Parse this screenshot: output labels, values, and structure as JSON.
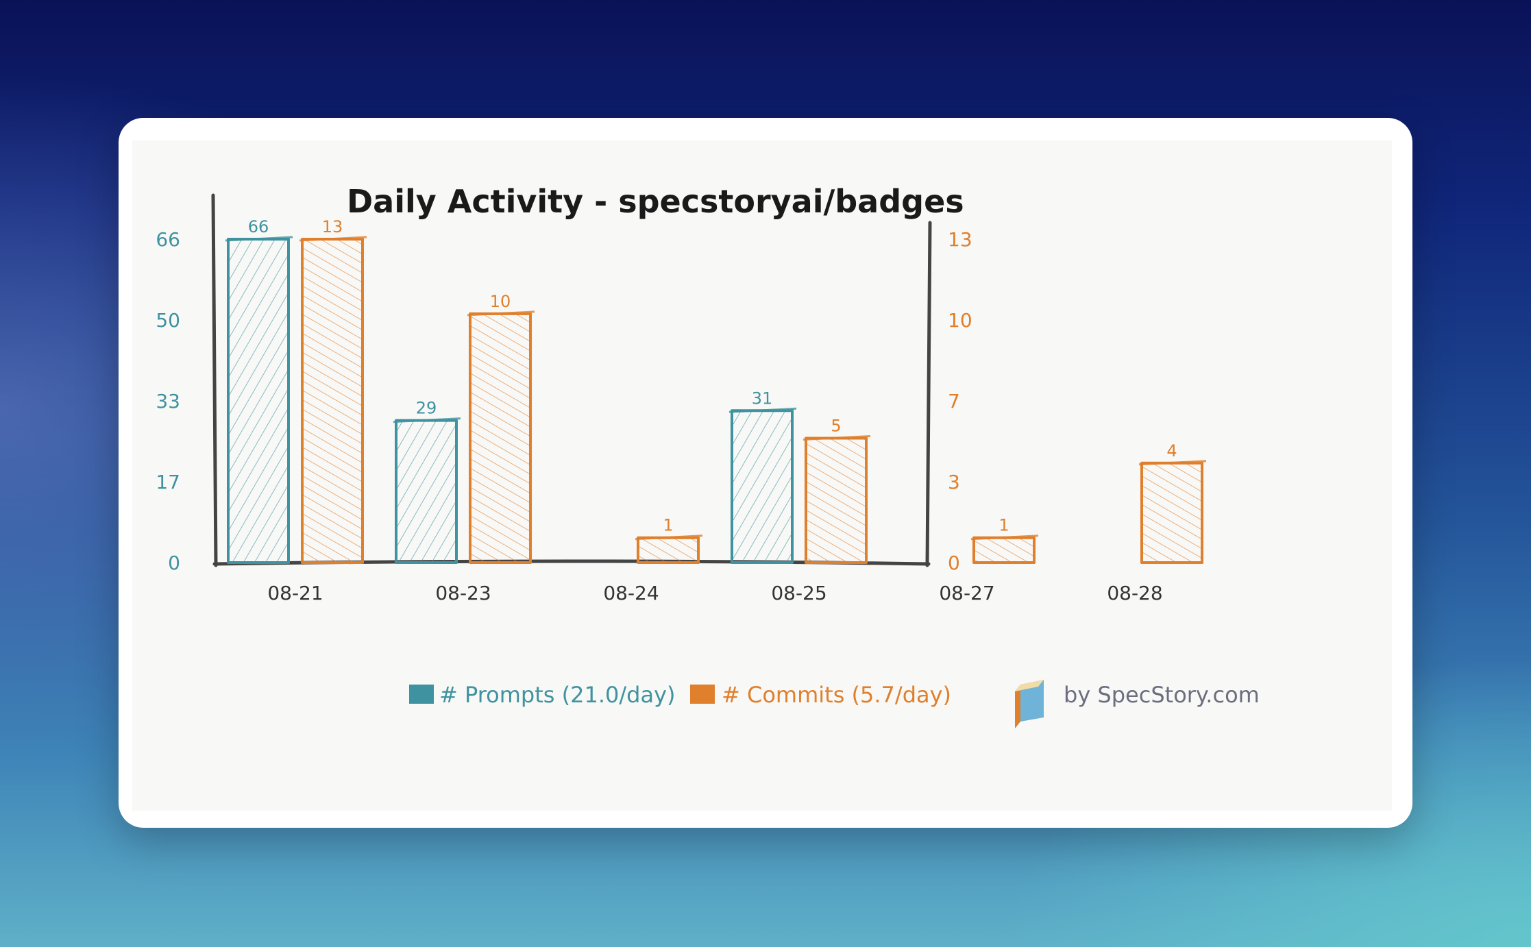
{
  "chart_data": {
    "type": "bar",
    "title": "Daily Activity - specstoryai/badges",
    "categories": [
      "08-21",
      "08-23",
      "08-24",
      "08-25",
      "08-27",
      "08-28"
    ],
    "series": [
      {
        "name": "# Prompts (21.0/day)",
        "axis": "left",
        "color": "#3f92a0",
        "values": [
          66,
          29,
          0,
          31,
          0,
          0
        ]
      },
      {
        "name": "# Commits (5.7/day)",
        "axis": "right",
        "color": "#e07f2c",
        "values": [
          13,
          10,
          1,
          5,
          1,
          4
        ]
      }
    ],
    "y_left": {
      "ticks": [
        "0",
        "17",
        "33",
        "50",
        "66"
      ],
      "ylim": [
        0,
        66
      ]
    },
    "y_right": {
      "ticks": [
        "0",
        "3",
        "7",
        "10",
        "13"
      ],
      "ylim": [
        0,
        13
      ]
    },
    "legend_position": "bottom-left",
    "grid": false
  },
  "branding": {
    "label": "by SpecStory.com",
    "icon": "book-icon"
  }
}
